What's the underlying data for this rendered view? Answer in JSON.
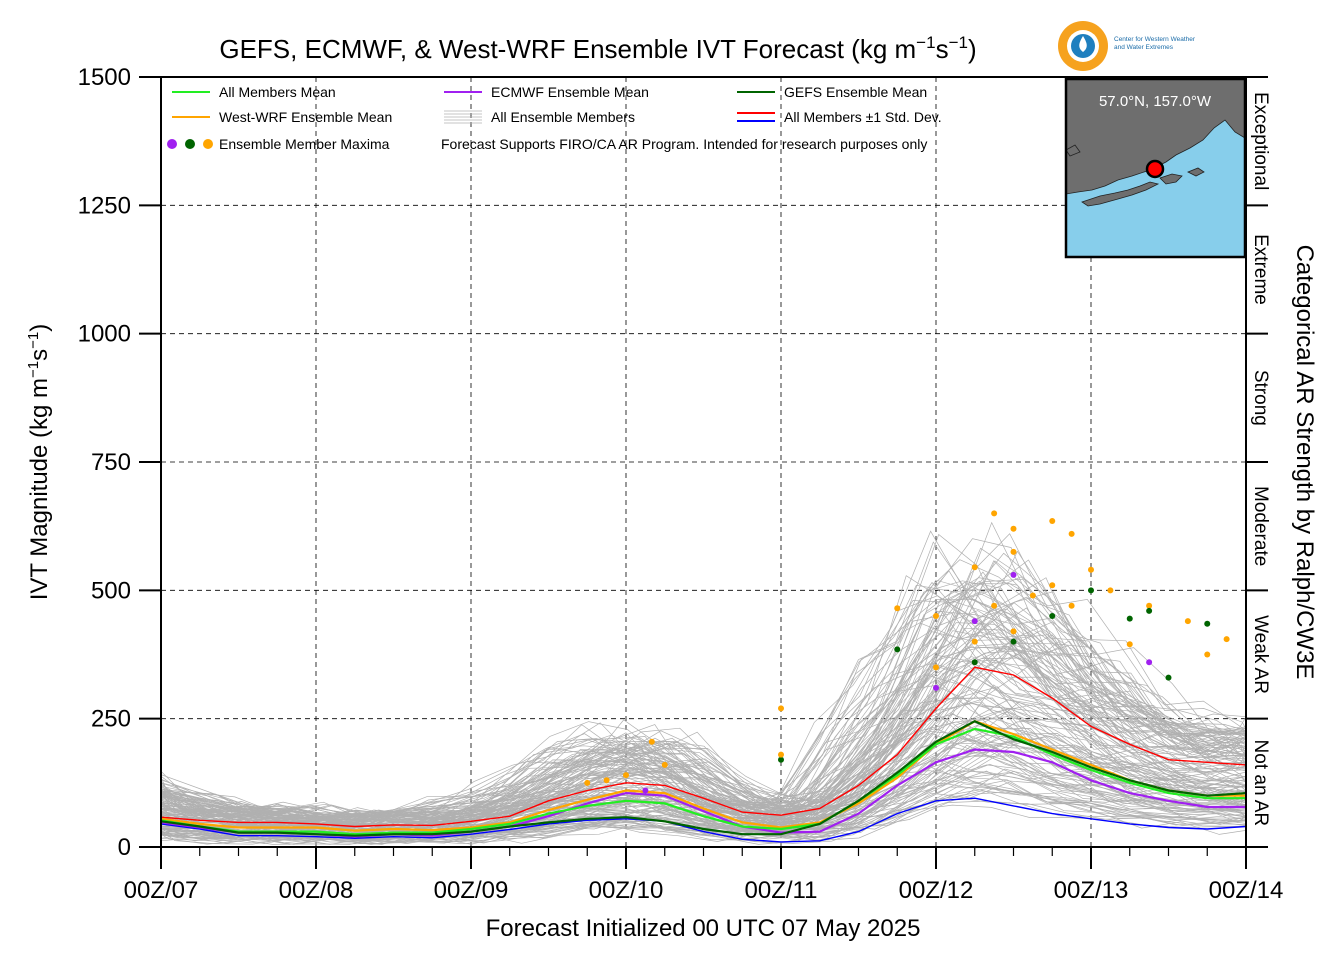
{
  "title": {
    "main": "GEFS, ECMWF, & West-WRF Ensemble IVT Forecast (kg m",
    "exp1": "−1",
    "mid": "s",
    "exp2": "−1",
    "close": ")"
  },
  "ylabel": {
    "main": "IVT Magnitude (kg m",
    "exp1": "−1",
    "mid": "s",
    "exp2": "−1",
    "close": ")"
  },
  "xlabel": "Forecast Initialized 00 UTC 07 May 2025",
  "right_axis_label": "Categorical AR Strength by Ralph/CW3E",
  "categories": [
    {
      "label": "Exceptional",
      "low": 1250,
      "high": 1500
    },
    {
      "label": "Extreme",
      "low": 1000,
      "high": 1250
    },
    {
      "label": "Strong",
      "low": 750,
      "high": 1000
    },
    {
      "label": "Moderate",
      "low": 500,
      "high": 750
    },
    {
      "label": "Weak AR",
      "low": 250,
      "high": 500
    },
    {
      "label": "Not an AR",
      "low": 0,
      "high": 250
    }
  ],
  "legend": {
    "all_mean": "All Members Mean",
    "ecmwf_mean": "ECMWF Ensemble Mean",
    "gefs_mean": "GEFS Ensemble Mean",
    "wwrf_mean": "West-WRF Ensemble Mean",
    "all_members": "All Ensemble Members",
    "std_dev": "All Members ±1 Std. Dev.",
    "maxima": "Ensemble Member Maxima",
    "note": "Forecast Supports FIRO/CA AR Program. Intended for research purposes only"
  },
  "inset": {
    "location": "57.0°N, 157.0°W"
  },
  "logo": {
    "line1": "Center for Western Weather",
    "line2": "and Water Extremes"
  },
  "colors": {
    "all_mean": "#22ee22",
    "ecmwf": "#a020f0",
    "gefs": "#006400",
    "wwrf": "#ffa500",
    "members": "#b0b0b0",
    "std_upper": "#ff0000",
    "std_lower": "#0000ff",
    "ocean": "#87ceeb",
    "land": "#6e6e6e"
  },
  "chart_data": {
    "type": "line",
    "ylim": [
      0,
      1500
    ],
    "yticks": [
      0,
      250,
      500,
      750,
      1000,
      1250,
      1500
    ],
    "ytick_labels": [
      "0",
      "250",
      "500",
      "750",
      "1000",
      "1250",
      "1500"
    ],
    "xlim": [
      0,
      168
    ],
    "xticks": [
      0,
      24,
      48,
      72,
      96,
      120,
      144,
      168
    ],
    "xtick_labels": [
      "00Z/07",
      "00Z/08",
      "00Z/09",
      "00Z/10",
      "00Z/11",
      "00Z/12",
      "00Z/13",
      "00Z/14"
    ],
    "x_hours": [
      0,
      6,
      12,
      18,
      24,
      30,
      36,
      42,
      48,
      54,
      60,
      66,
      72,
      78,
      84,
      90,
      96,
      102,
      108,
      114,
      120,
      126,
      132,
      138,
      144,
      150,
      156,
      162,
      168
    ],
    "grid": true,
    "legend_position": "top",
    "series": [
      {
        "name": "All Members Mean",
        "color_key": "all_mean",
        "values": [
          52,
          40,
          30,
          30,
          30,
          25,
          28,
          28,
          35,
          45,
          65,
          80,
          90,
          85,
          60,
          40,
          35,
          45,
          90,
          140,
          200,
          230,
          215,
          180,
          150,
          125,
          105,
          95,
          95
        ]
      },
      {
        "name": "ECMWF Ensemble Mean",
        "color_key": "ecmwf",
        "values": [
          48,
          38,
          28,
          28,
          25,
          20,
          25,
          22,
          30,
          40,
          60,
          85,
          105,
          100,
          70,
          40,
          28,
          30,
          65,
          120,
          165,
          190,
          185,
          165,
          130,
          105,
          90,
          78,
          78
        ]
      },
      {
        "name": "GEFS Ensemble Mean",
        "color_key": "gefs",
        "values": [
          50,
          40,
          28,
          28,
          25,
          22,
          25,
          25,
          30,
          40,
          48,
          55,
          58,
          50,
          35,
          25,
          25,
          45,
          90,
          145,
          205,
          245,
          210,
          185,
          155,
          130,
          110,
          100,
          105
        ]
      },
      {
        "name": "West-WRF Ensemble Mean",
        "color_key": "wwrf",
        "values": [
          55,
          45,
          38,
          38,
          38,
          32,
          35,
          33,
          38,
          48,
          72,
          92,
          110,
          105,
          75,
          48,
          38,
          48,
          85,
          135,
          200,
          245,
          220,
          190,
          160,
          130,
          110,
          100,
          100
        ]
      },
      {
        "name": "All Members ±1 Std. Dev.",
        "color_key": "std_upper",
        "values": [
          58,
          52,
          48,
          48,
          45,
          40,
          43,
          42,
          50,
          60,
          90,
          110,
          125,
          120,
          95,
          68,
          62,
          75,
          120,
          180,
          270,
          350,
          335,
          290,
          235,
          200,
          170,
          165,
          160
        ]
      },
      {
        "name": "All Members ±1 Std. Dev. (lower)",
        "color_key": "std_lower",
        "values": [
          45,
          35,
          22,
          22,
          20,
          17,
          20,
          18,
          25,
          34,
          45,
          52,
          55,
          50,
          30,
          15,
          10,
          12,
          30,
          65,
          90,
          95,
          80,
          65,
          55,
          45,
          38,
          35,
          40
        ]
      }
    ],
    "member_envelope": {
      "name": "All Ensemble Members",
      "approx_range_at_peak": [
        10,
        650
      ]
    },
    "maxima_points": [
      {
        "model": "wwrf",
        "x": 72,
        "y": 140
      },
      {
        "model": "wwrf",
        "x": 76,
        "y": 205
      },
      {
        "model": "wwrf",
        "x": 69,
        "y": 130
      },
      {
        "model": "ecmwf",
        "x": 75,
        "y": 110
      },
      {
        "model": "wwrf",
        "x": 78,
        "y": 160
      },
      {
        "model": "wwrf",
        "x": 66,
        "y": 125
      },
      {
        "model": "gefs",
        "x": 96,
        "y": 170
      },
      {
        "model": "wwrf",
        "x": 96,
        "y": 270
      },
      {
        "model": "wwrf",
        "x": 96,
        "y": 180
      },
      {
        "model": "gefs",
        "x": 114,
        "y": 385
      },
      {
        "model": "wwrf",
        "x": 114,
        "y": 465
      },
      {
        "model": "wwrf",
        "x": 120,
        "y": 450
      },
      {
        "model": "wwrf",
        "x": 120,
        "y": 350
      },
      {
        "model": "ecmwf",
        "x": 120,
        "y": 310
      },
      {
        "model": "wwrf",
        "x": 126,
        "y": 545
      },
      {
        "model": "wwrf",
        "x": 126,
        "y": 400
      },
      {
        "model": "gefs",
        "x": 126,
        "y": 360
      },
      {
        "model": "ecmwf",
        "x": 126,
        "y": 440
      },
      {
        "model": "wwrf",
        "x": 129,
        "y": 650
      },
      {
        "model": "wwrf",
        "x": 129,
        "y": 470
      },
      {
        "model": "wwrf",
        "x": 132,
        "y": 620
      },
      {
        "model": "wwrf",
        "x": 132,
        "y": 575
      },
      {
        "model": "ecmwf",
        "x": 132,
        "y": 530
      },
      {
        "model": "wwrf",
        "x": 132,
        "y": 420
      },
      {
        "model": "gefs",
        "x": 132,
        "y": 400
      },
      {
        "model": "wwrf",
        "x": 135,
        "y": 490
      },
      {
        "model": "wwrf",
        "x": 138,
        "y": 635
      },
      {
        "model": "wwrf",
        "x": 138,
        "y": 510
      },
      {
        "model": "gefs",
        "x": 138,
        "y": 450
      },
      {
        "model": "wwrf",
        "x": 141,
        "y": 610
      },
      {
        "model": "wwrf",
        "x": 141,
        "y": 470
      },
      {
        "model": "gefs",
        "x": 144,
        "y": 500
      },
      {
        "model": "wwrf",
        "x": 144,
        "y": 540
      },
      {
        "model": "wwrf",
        "x": 147,
        "y": 500
      },
      {
        "model": "gefs",
        "x": 150,
        "y": 445
      },
      {
        "model": "wwrf",
        "x": 150,
        "y": 395
      },
      {
        "model": "wwrf",
        "x": 153,
        "y": 470
      },
      {
        "model": "gefs",
        "x": 153,
        "y": 460
      },
      {
        "model": "ecmwf",
        "x": 153,
        "y": 360
      },
      {
        "model": "wwrf",
        "x": 159,
        "y": 440
      },
      {
        "model": "gefs",
        "x": 162,
        "y": 435
      },
      {
        "model": "wwrf",
        "x": 165,
        "y": 405
      },
      {
        "model": "wwrf",
        "x": 162,
        "y": 375
      },
      {
        "model": "gefs",
        "x": 156,
        "y": 330
      }
    ]
  }
}
